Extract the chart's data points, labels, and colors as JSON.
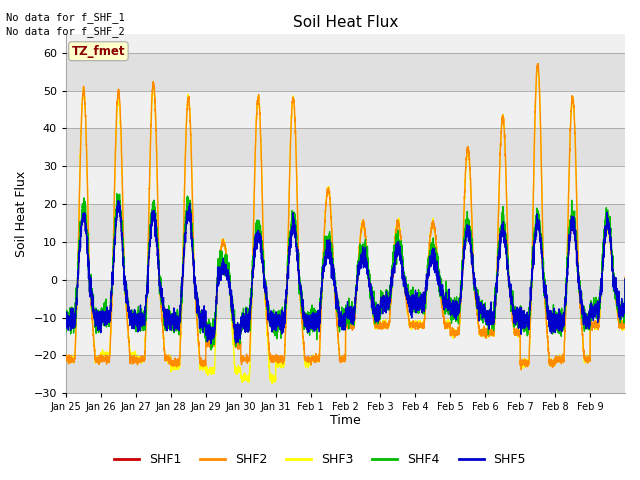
{
  "title": "Soil Heat Flux",
  "ylabel": "Soil Heat Flux",
  "xlabel": "Time",
  "ylim": [
    -30,
    65
  ],
  "yticks": [
    -30,
    -20,
    -10,
    0,
    10,
    20,
    30,
    40,
    50,
    60
  ],
  "series_colors": {
    "SHF1": "#cc0000",
    "SHF2": "#ff8c00",
    "SHF3": "#ffff00",
    "SHF4": "#00bb00",
    "SHF5": "#0000cc"
  },
  "no_data_text": [
    "No data for f_SHF_1",
    "No data for f_SHF_2"
  ],
  "tz_fmet_label": "TZ_fmet",
  "background_color": "#ffffff",
  "plot_bg_light": "#f0f0f0",
  "plot_bg_dark": "#e0e0e0",
  "n_days": 16,
  "x_tick_labels": [
    "Jan 25",
    "Jan 26",
    "Jan 27",
    "Jan 28",
    "Jan 29",
    "Jan 30",
    "Jan 31",
    "Feb 1",
    "Feb 2",
    "Feb 3",
    "Feb 4",
    "Feb 5",
    "Feb 6",
    "Feb 7",
    "Feb 8",
    "Feb 9"
  ],
  "lw": 1.0,
  "peak_shf2": [
    50,
    50,
    52,
    48,
    10,
    48,
    48,
    24,
    15,
    15,
    15,
    35,
    43,
    57,
    48,
    15
  ],
  "peak_shf3": [
    50,
    48,
    51,
    48,
    10,
    48,
    48,
    24,
    15,
    15,
    15,
    34,
    43,
    56,
    48,
    14
  ],
  "peak_shf1": [
    17,
    19,
    17,
    18,
    3,
    12,
    14,
    8,
    6,
    8,
    6,
    13,
    13,
    15,
    15,
    15
  ],
  "night_shf2": [
    -21,
    -21,
    -21,
    -22,
    -17,
    -21,
    -21,
    -21,
    -12,
    -12,
    -12,
    -14,
    -14,
    -22,
    -21,
    -12
  ],
  "night_shf3": [
    -21,
    -20,
    -21,
    -23,
    -24,
    -26,
    -22,
    -21,
    -12,
    -12,
    -12,
    -14,
    -14,
    -22,
    -21,
    -12
  ],
  "night_shf1": [
    -11,
    -10,
    -11,
    -11,
    -14,
    -11,
    -11,
    -11,
    -9,
    -6,
    -6,
    -8,
    -10,
    -11,
    -11,
    -8
  ]
}
